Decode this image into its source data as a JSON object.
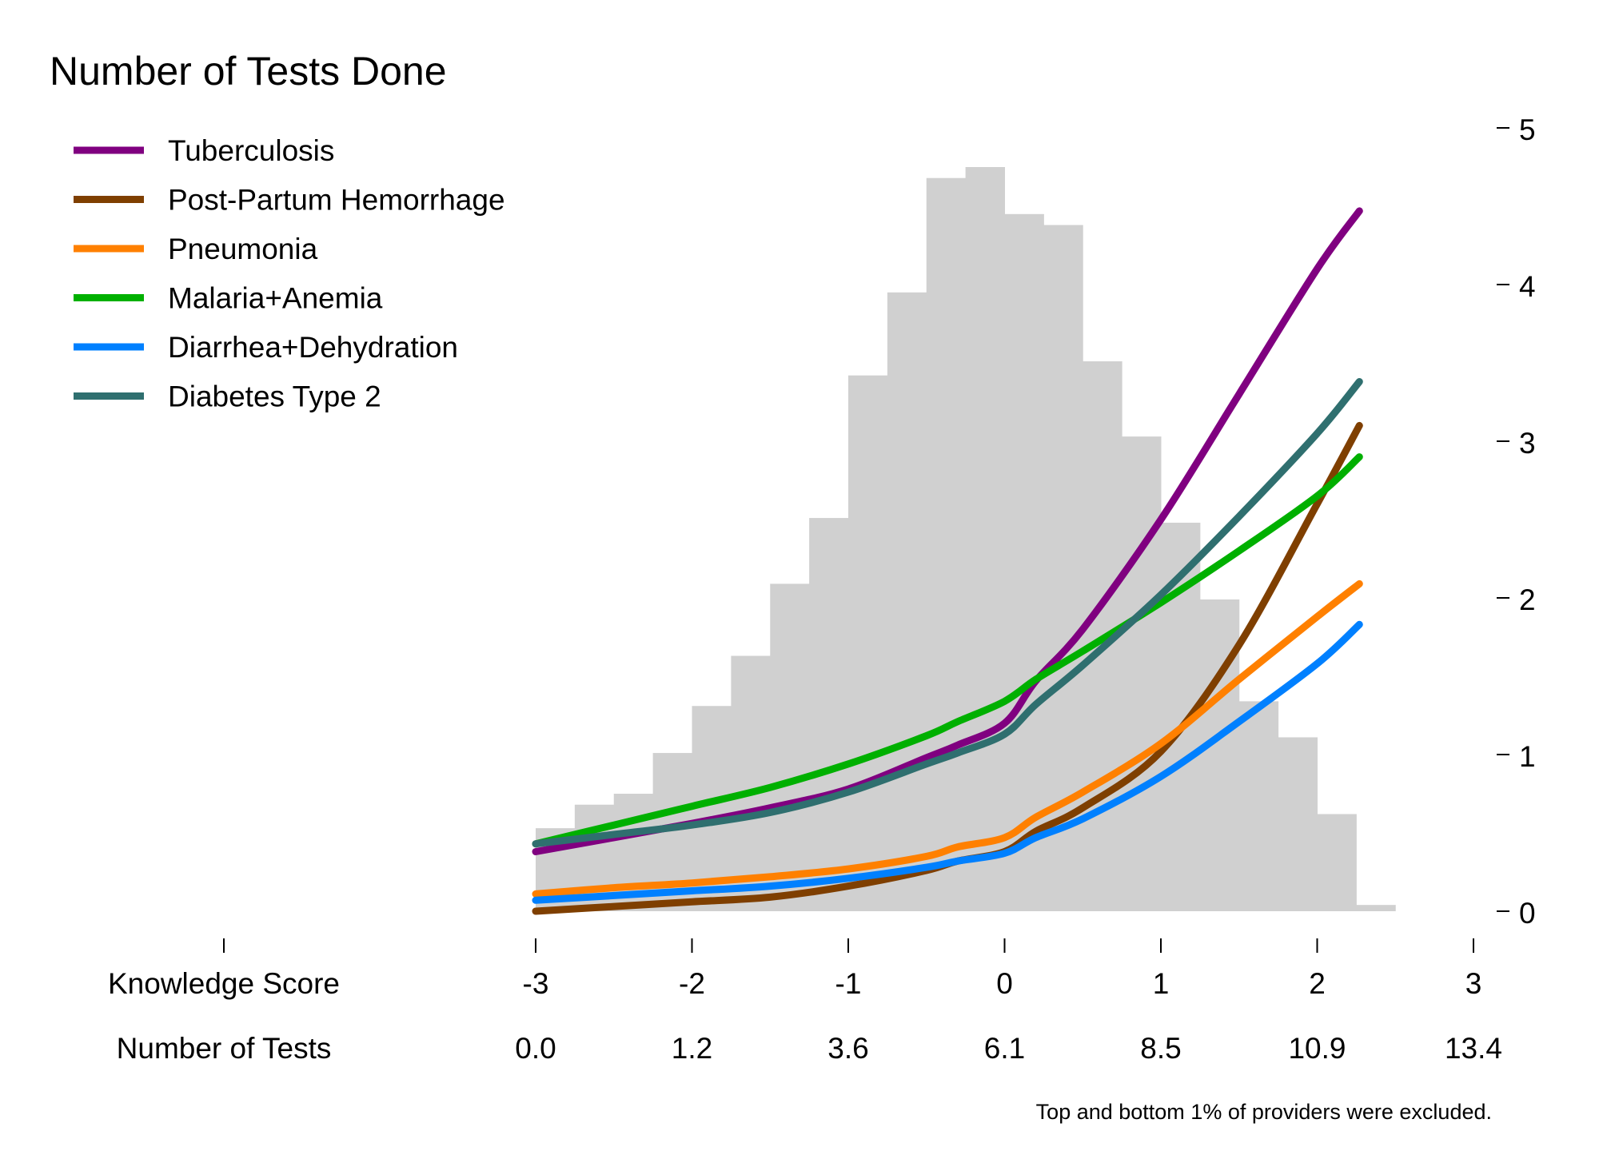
{
  "chart_data": {
    "type": "line",
    "title": "Number of Tests Done",
    "note": "Top and bottom 1% of providers were excluded.",
    "x_axis": {
      "label": "Knowledge Score",
      "range": [
        -3,
        3
      ],
      "ticks": [
        -3,
        -2,
        -1,
        0,
        1,
        2,
        3
      ],
      "tick_labels": [
        "-3",
        "-2",
        "-1",
        "0",
        "1",
        "2",
        "3"
      ]
    },
    "secondary_x_axis": {
      "label": "Number of Tests",
      "tick_labels": [
        "0.0",
        "1.2",
        "3.6",
        "6.1",
        "8.5",
        "10.9",
        "13.4"
      ]
    },
    "y_axis": {
      "position": "right",
      "range": [
        0,
        5
      ],
      "ticks": [
        0,
        1,
        2,
        3,
        4,
        5
      ],
      "tick_labels": [
        "0",
        "1",
        "2",
        "3",
        "4",
        "5"
      ]
    },
    "grid": false,
    "legend_position": "top-left",
    "histogram": {
      "color": "#d0d0d0",
      "bin_edges": [
        -3,
        -2.75,
        -2.5,
        -2.25,
        -2,
        -1.75,
        -1.5,
        -1.25,
        -1,
        -0.75,
        -0.5,
        -0.25,
        0,
        0.25,
        0.5,
        0.75,
        1,
        1.25,
        1.5,
        1.75,
        2,
        2.25,
        2.5
      ],
      "heights": [
        0.53,
        0.68,
        0.75,
        1.01,
        1.31,
        1.63,
        2.09,
        2.51,
        3.42,
        3.95,
        4.68,
        4.75,
        4.45,
        4.38,
        3.51,
        3.03,
        2.48,
        1.99,
        1.34,
        1.11,
        0.62,
        0.04
      ]
    },
    "x": [
      -3,
      -2.5,
      -2,
      -1.5,
      -1,
      -0.5,
      -0.3,
      0,
      0.2,
      0.5,
      1,
      1.5,
      2,
      2.27
    ],
    "series": [
      {
        "name": "Tuberculosis",
        "color": "#800080",
        "values": [
          0.38,
          0.47,
          0.56,
          0.66,
          0.78,
          0.98,
          1.06,
          1.2,
          1.47,
          1.8,
          2.5,
          3.3,
          4.1,
          4.47
        ]
      },
      {
        "name": "Post-Partum Hemorrhage",
        "color": "#7f3f00",
        "values": [
          0.0,
          0.03,
          0.06,
          0.09,
          0.16,
          0.26,
          0.32,
          0.38,
          0.51,
          0.66,
          1.02,
          1.7,
          2.6,
          3.1
        ]
      },
      {
        "name": "Pneumonia",
        "color": "#ff8000",
        "values": [
          0.11,
          0.15,
          0.18,
          0.22,
          0.27,
          0.35,
          0.41,
          0.47,
          0.6,
          0.76,
          1.07,
          1.48,
          1.88,
          2.09
        ]
      },
      {
        "name": "Malaria+Anemia",
        "color": "#00b000",
        "values": [
          0.43,
          0.55,
          0.67,
          0.79,
          0.94,
          1.12,
          1.21,
          1.34,
          1.48,
          1.66,
          1.97,
          2.3,
          2.65,
          2.9
        ]
      },
      {
        "name": "Diarrhea+Dehydration",
        "color": "#0080ff",
        "values": [
          0.07,
          0.1,
          0.13,
          0.16,
          0.21,
          0.28,
          0.32,
          0.37,
          0.47,
          0.59,
          0.86,
          1.21,
          1.58,
          1.83
        ]
      },
      {
        "name": "Diabetes Type 2",
        "color": "#2f6f6f",
        "values": [
          0.43,
          0.49,
          0.55,
          0.63,
          0.76,
          0.94,
          1.01,
          1.13,
          1.32,
          1.57,
          2.02,
          2.52,
          3.05,
          3.38
        ]
      }
    ]
  }
}
